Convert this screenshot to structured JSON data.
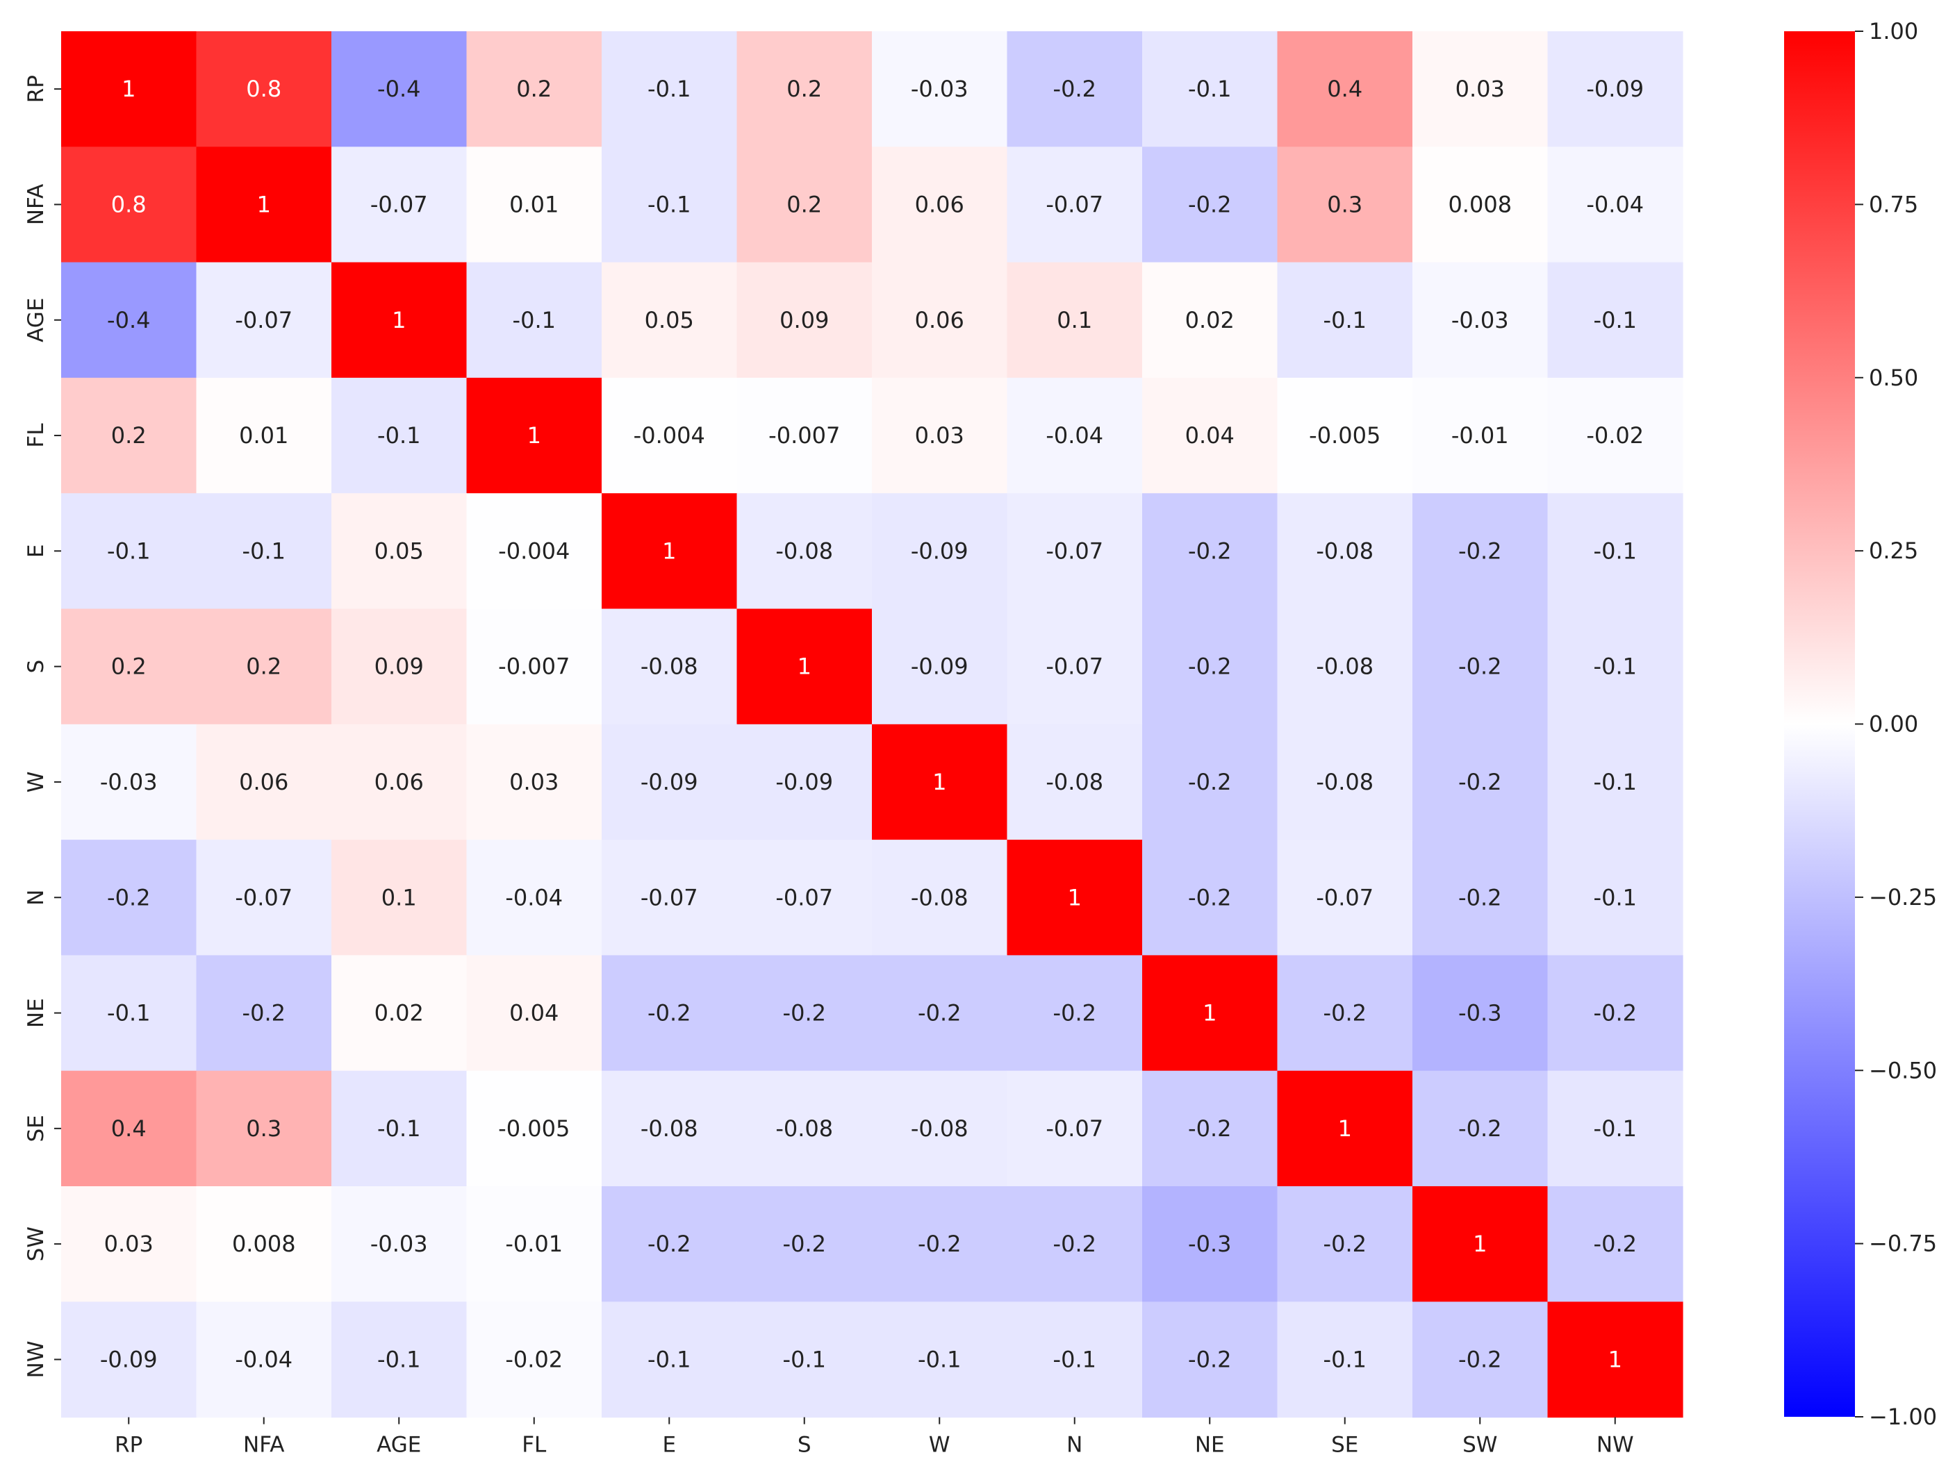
{
  "chart_data": {
    "type": "heatmap",
    "title": "",
    "xlabel": "",
    "ylabel": "",
    "x_categories": [
      "RP",
      "NFA",
      "AGE",
      "FL",
      "E",
      "S",
      "W",
      "N",
      "NE",
      "SE",
      "SW",
      "NW"
    ],
    "y_categories": [
      "RP",
      "NFA",
      "AGE",
      "FL",
      "E",
      "S",
      "W",
      "N",
      "NE",
      "SE",
      "SW",
      "NW"
    ],
    "values": [
      [
        1,
        0.8,
        -0.4,
        0.2,
        -0.1,
        0.2,
        -0.03,
        -0.2,
        -0.1,
        0.4,
        0.03,
        -0.09
      ],
      [
        0.8,
        1,
        -0.07,
        0.01,
        -0.1,
        0.2,
        0.06,
        -0.07,
        -0.2,
        0.3,
        0.008,
        -0.04
      ],
      [
        -0.4,
        -0.07,
        1,
        -0.1,
        0.05,
        0.09,
        0.06,
        0.1,
        0.02,
        -0.1,
        -0.03,
        -0.1
      ],
      [
        0.2,
        0.01,
        -0.1,
        1,
        -0.004,
        -0.007,
        0.03,
        -0.04,
        0.04,
        -0.005,
        -0.01,
        -0.02
      ],
      [
        -0.1,
        -0.1,
        0.05,
        -0.004,
        1,
        -0.08,
        -0.09,
        -0.07,
        -0.2,
        -0.08,
        -0.2,
        -0.1
      ],
      [
        0.2,
        0.2,
        0.09,
        -0.007,
        -0.08,
        1,
        -0.09,
        -0.07,
        -0.2,
        -0.08,
        -0.2,
        -0.1
      ],
      [
        -0.03,
        0.06,
        0.06,
        0.03,
        -0.09,
        -0.09,
        1,
        -0.08,
        -0.2,
        -0.08,
        -0.2,
        -0.1
      ],
      [
        -0.2,
        -0.07,
        0.1,
        -0.04,
        -0.07,
        -0.07,
        -0.08,
        1,
        -0.2,
        -0.07,
        -0.2,
        -0.1
      ],
      [
        -0.1,
        -0.2,
        0.02,
        0.04,
        -0.2,
        -0.2,
        -0.2,
        -0.2,
        1,
        -0.2,
        -0.3,
        -0.2
      ],
      [
        0.4,
        0.3,
        -0.1,
        -0.005,
        -0.08,
        -0.08,
        -0.08,
        -0.07,
        -0.2,
        1,
        -0.2,
        -0.1
      ],
      [
        0.03,
        0.008,
        -0.03,
        -0.01,
        -0.2,
        -0.2,
        -0.2,
        -0.2,
        -0.3,
        -0.2,
        1,
        -0.2
      ],
      [
        -0.09,
        -0.04,
        -0.1,
        -0.02,
        -0.1,
        -0.1,
        -0.1,
        -0.1,
        -0.2,
        -0.1,
        -0.2,
        1
      ]
    ],
    "value_range": [
      -1,
      1
    ],
    "colormap": "bwr",
    "colors": {
      "negative": "#0000ff",
      "zero": "#ffffff",
      "positive": "#ff0000"
    },
    "colorbar": {
      "placement": "right",
      "ticks": [
        1.0,
        0.75,
        0.5,
        0.25,
        0.0,
        -0.25,
        -0.5,
        -0.75,
        -1.0
      ],
      "tick_labels": [
        "1.00",
        "0.75",
        "0.50",
        "0.25",
        "0.00",
        "−0.25",
        "−0.50",
        "−0.75",
        "−1.00"
      ]
    },
    "grid": false
  }
}
